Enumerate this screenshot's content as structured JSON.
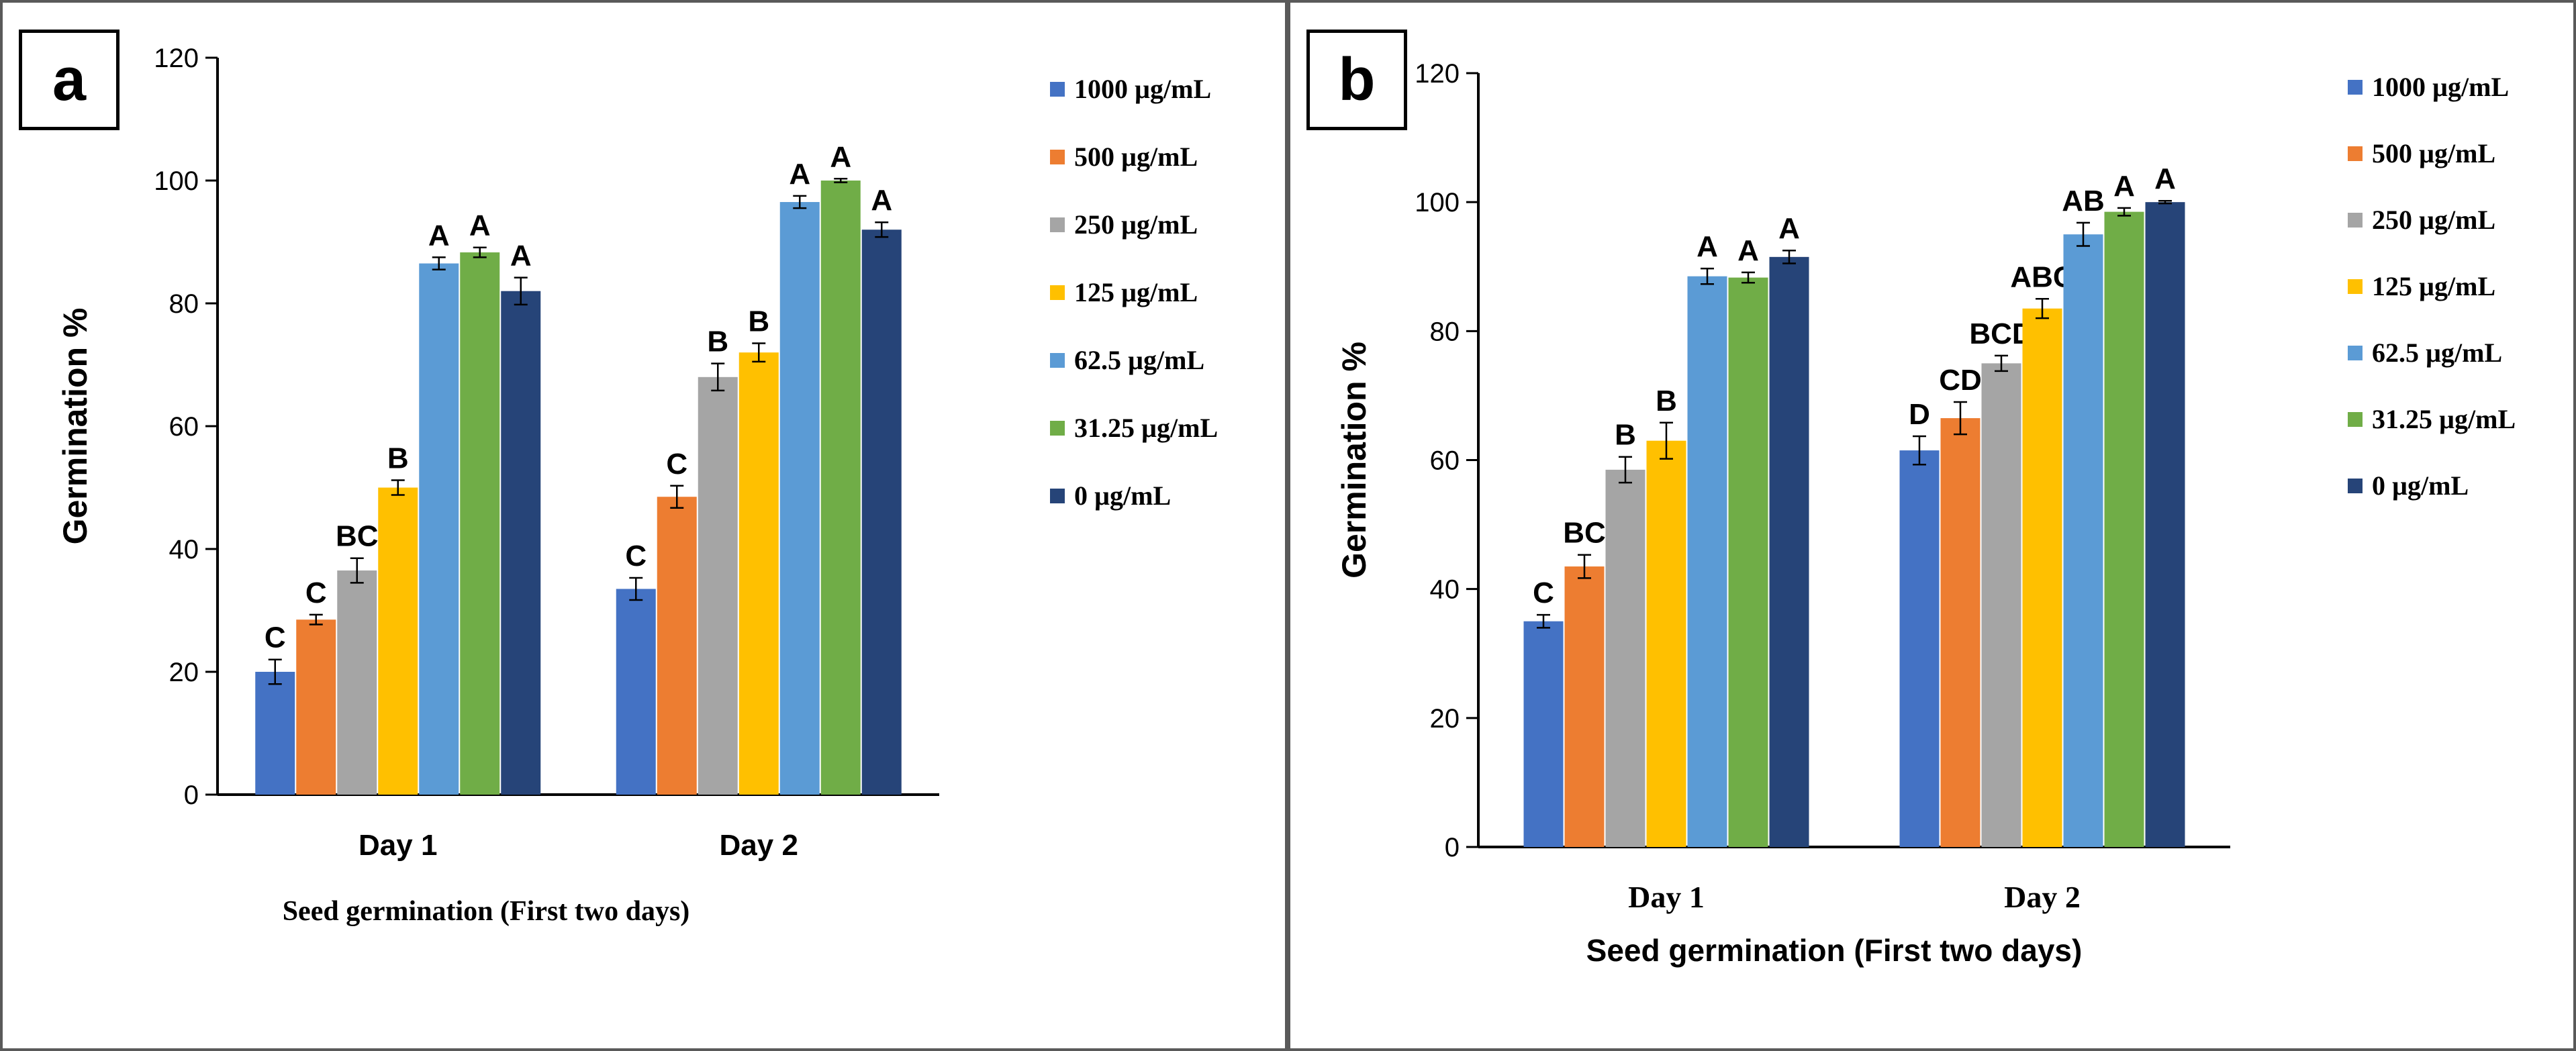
{
  "chart_data": [
    {
      "panel_label": "a",
      "type": "bar",
      "categories": [
        "Day 1",
        "Day 2"
      ],
      "ylabel": "Germination %",
      "xlabel": "Seed germination  (First two days)",
      "ylim": [
        0,
        120
      ],
      "yticks": [
        0,
        20,
        40,
        60,
        80,
        100,
        120
      ],
      "legend_position": "right",
      "series": [
        {
          "name": "1000 µg/mL",
          "color": "#4472C4",
          "values": [
            20,
            33.5
          ],
          "errors": [
            2,
            1.8
          ],
          "letters": [
            "C",
            "C"
          ]
        },
        {
          "name": "500 µg/mL",
          "color": "#ED7D31",
          "values": [
            28.5,
            48.5
          ],
          "errors": [
            0.8,
            1.8
          ],
          "letters": [
            "C",
            "C"
          ]
        },
        {
          "name": "250 µg/mL",
          "color": "#A5A5A5",
          "values": [
            36.5,
            68
          ],
          "errors": [
            2,
            2.2
          ],
          "letters": [
            "BC",
            "B"
          ]
        },
        {
          "name": "125 µg/mL",
          "color": "#FFC000",
          "values": [
            50,
            72
          ],
          "errors": [
            1.2,
            1.5
          ],
          "letters": [
            "B",
            "B"
          ]
        },
        {
          "name": "62.5 µg/mL",
          "color": "#5B9BD5",
          "values": [
            86.5,
            96.5
          ],
          "errors": [
            1,
            1
          ],
          "letters": [
            "A",
            "A"
          ]
        },
        {
          "name": "31.25 µg/mL",
          "color": "#70AD47",
          "values": [
            88.3,
            100
          ],
          "errors": [
            0.8,
            0.3
          ],
          "letters": [
            "A",
            "A"
          ]
        },
        {
          "name": "0 µg/mL",
          "color": "#264478",
          "values": [
            82,
            92
          ],
          "errors": [
            2.2,
            1.2
          ],
          "letters": [
            "A",
            "A"
          ]
        }
      ]
    },
    {
      "panel_label": "b",
      "type": "bar",
      "categories": [
        "Day 1",
        "Day 2"
      ],
      "ylabel": "Germination %",
      "xlabel": "Seed germination (First two days)",
      "ylim": [
        0,
        120
      ],
      "yticks": [
        0,
        20,
        40,
        60,
        80,
        100,
        120
      ],
      "legend_position": "right",
      "series": [
        {
          "name": "1000 µg/mL",
          "color": "#4472C4",
          "values": [
            35,
            61.5
          ],
          "errors": [
            1,
            2.2
          ],
          "letters": [
            "C",
            "D"
          ]
        },
        {
          "name": "500 µg/mL",
          "color": "#ED7D31",
          "values": [
            43.5,
            66.5
          ],
          "errors": [
            1.8,
            2.5
          ],
          "letters": [
            "BC",
            "CD"
          ]
        },
        {
          "name": "250 µg/mL",
          "color": "#A5A5A5",
          "values": [
            58.5,
            75
          ],
          "errors": [
            2,
            1.2
          ],
          "letters": [
            "B",
            "BCD"
          ]
        },
        {
          "name": "125 µg/mL",
          "color": "#FFC000",
          "values": [
            63,
            83.5
          ],
          "errors": [
            2.8,
            1.5
          ],
          "letters": [
            "B",
            "ABC"
          ]
        },
        {
          "name": "62.5 µg/mL",
          "color": "#5B9BD5",
          "values": [
            88.5,
            95
          ],
          "errors": [
            1.2,
            1.8
          ],
          "letters": [
            "A",
            "AB"
          ]
        },
        {
          "name": "31.25 µg/mL",
          "color": "#70AD47",
          "values": [
            88.3,
            98.5
          ],
          "errors": [
            0.8,
            0.6
          ],
          "letters": [
            "A",
            "A"
          ]
        },
        {
          "name": "0 µg/mL",
          "color": "#264478",
          "values": [
            91.5,
            100
          ],
          "errors": [
            1,
            0.2
          ],
          "letters": [
            "A",
            "A"
          ]
        }
      ]
    }
  ]
}
